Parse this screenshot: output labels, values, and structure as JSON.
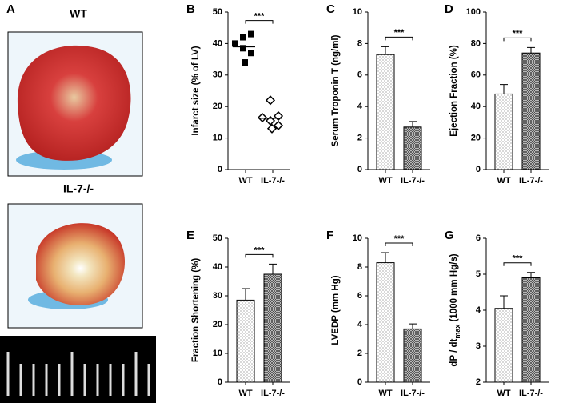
{
  "panel_a": {
    "letter": "A",
    "labels": [
      "WT",
      "IL-7-/-"
    ]
  },
  "chart_data": [
    {
      "type": "scatter",
      "letter": "B",
      "ylabel": "Infarct size (% of LV)",
      "categories": [
        "WT",
        "IL-7-/-"
      ],
      "values": [
        [
          42,
          43,
          40,
          38.5,
          37,
          34
        ],
        [
          22,
          17,
          16.5,
          15.5,
          14,
          13
        ]
      ],
      "means": [
        39,
        16.3
      ],
      "ylim": [
        0,
        50
      ],
      "yticks": [
        0,
        10,
        20,
        30,
        40,
        50
      ],
      "significance": "***"
    },
    {
      "type": "bar",
      "letter": "C",
      "ylabel": "Serum Troponin T (ng/ml)",
      "categories": [
        "WT",
        "IL-7-/-"
      ],
      "values": [
        7.3,
        2.7
      ],
      "errors": [
        0.5,
        0.35
      ],
      "ylim": [
        0,
        10
      ],
      "yticks": [
        0,
        2,
        4,
        6,
        8,
        10
      ],
      "significance": "***"
    },
    {
      "type": "bar",
      "letter": "D",
      "ylabel": "Ejection Fraction (%)",
      "categories": [
        "WT",
        "IL-7-/-"
      ],
      "values": [
        48,
        74
      ],
      "errors": [
        6,
        3.5
      ],
      "ylim": [
        0,
        100
      ],
      "yticks": [
        0,
        20,
        40,
        60,
        80,
        100
      ],
      "significance": "***"
    },
    {
      "type": "bar",
      "letter": "E",
      "ylabel": "Fraction Shortening (%)",
      "categories": [
        "WT",
        "IL-7-/-"
      ],
      "values": [
        28.5,
        37.5
      ],
      "errors": [
        4,
        3.5
      ],
      "ylim": [
        0,
        50
      ],
      "yticks": [
        0,
        10,
        20,
        30,
        40,
        50
      ],
      "significance": "***"
    },
    {
      "type": "bar",
      "letter": "F",
      "ylabel": "LVEDP (mm Hg)",
      "categories": [
        "WT",
        "IL-7-/-"
      ],
      "values": [
        8.3,
        3.7
      ],
      "errors": [
        0.7,
        0.35
      ],
      "ylim": [
        0,
        10
      ],
      "yticks": [
        0,
        2,
        4,
        6,
        8,
        10
      ],
      "significance": "***"
    },
    {
      "type": "bar",
      "letter": "G",
      "ylabel": "dP / dt",
      "ylabel_sub": "max",
      "ylabel_end": " (1000 mm Hg/s)",
      "categories": [
        "WT",
        "IL-7-/-"
      ],
      "values": [
        4.05,
        4.9
      ],
      "errors": [
        0.35,
        0.15
      ],
      "ylim": [
        2,
        6
      ],
      "yticks": [
        2,
        3,
        4,
        5,
        6
      ],
      "significance": "***"
    }
  ]
}
